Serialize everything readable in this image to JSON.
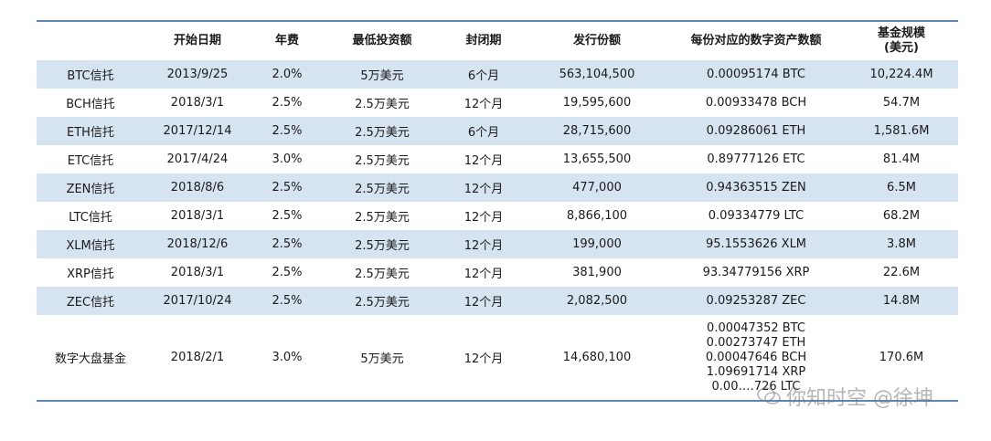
{
  "header": {
    "col0": "",
    "col1": "开始日期",
    "col2": "年费",
    "col3": "最低投资额",
    "col4": "封闭期",
    "col5": "发行份额",
    "col6": "每份对应的数字资产数额",
    "col7_line1": "基金规模",
    "col7_line2": "(美元)"
  },
  "rows": [
    {
      "name": "BTC信托",
      "start": "2013/9/25",
      "fee": "2.0%",
      "min": "5万美元",
      "lock": "6个月",
      "shares": "563,104,500",
      "per": "0.00095174 BTC",
      "aum": "10,224.4M"
    },
    {
      "name": "BCH信托",
      "start": "2018/3/1",
      "fee": "2.5%",
      "min": "2.5万美元",
      "lock": "12个月",
      "shares": "19,595,600",
      "per": "0.00933478 BCH",
      "aum": "54.7M"
    },
    {
      "name": "ETH信托",
      "start": "2017/12/14",
      "fee": "2.5%",
      "min": "2.5万美元",
      "lock": "6个月",
      "shares": "28,715,600",
      "per": "0.09286061 ETH",
      "aum": "1,581.6M"
    },
    {
      "name": "ETC信托",
      "start": "2017/4/24",
      "fee": "3.0%",
      "min": "2.5万美元",
      "lock": "12个月",
      "shares": "13,655,500",
      "per": "0.89777126 ETC",
      "aum": "81.4M"
    },
    {
      "name": "ZEN信托",
      "start": "2018/8/6",
      "fee": "2.5%",
      "min": "2.5万美元",
      "lock": "12个月",
      "shares": "477,000",
      "per": "0.94363515 ZEN",
      "aum": "6.5M"
    },
    {
      "name": "LTC信托",
      "start": "2018/3/1",
      "fee": "2.5%",
      "min": "2.5万美元",
      "lock": "12个月",
      "shares": "8,866,100",
      "per": "0.09334779 LTC",
      "aum": "68.2M"
    },
    {
      "name": "XLM信托",
      "start": "2018/12/6",
      "fee": "2.5%",
      "min": "2.5万美元",
      "lock": "12个月",
      "shares": "199,000",
      "per": "95.1553626 XLM",
      "aum": "3.8M"
    },
    {
      "name": "XRP信托",
      "start": "2018/3/1",
      "fee": "2.5%",
      "min": "2.5万美元",
      "lock": "12个月",
      "shares": "381,900",
      "per": "93.34779156 XRP",
      "aum": "22.6M"
    },
    {
      "name": "ZEC信托",
      "start": "2017/10/24",
      "fee": "2.5%",
      "min": "2.5万美元",
      "lock": "12个月",
      "shares": "2,082,500",
      "per": "0.09253287 ZEC",
      "aum": "14.8M"
    }
  ],
  "last_row": {
    "name": "数字大盘基金",
    "start": "2018/2/1",
    "fee": "3.0%",
    "min": "5万美元",
    "lock": "12个月",
    "shares": "14,680,100",
    "per_1": "0.00047352 BTC",
    "per_2": "0.00273747 ETH",
    "per_3": "0.00047646 BCH",
    "per_4": "1.09691714 XRP",
    "per_5": "0.00‥‥726 LTC",
    "aum": "170.6M"
  },
  "watermark": "你知时空 @徐坤"
}
